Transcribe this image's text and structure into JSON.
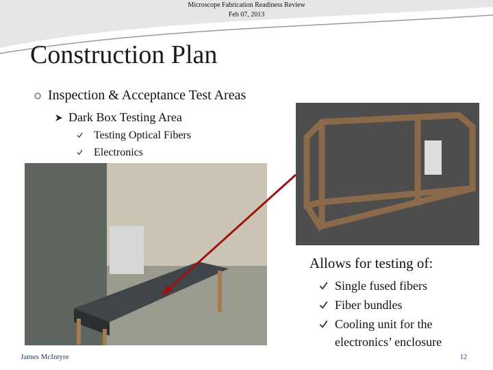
{
  "header": {
    "line1": "Microscope Fabrication Readiness Review",
    "line2": "Feb 07, 2013"
  },
  "title": "Construction Plan",
  "bullet": "Inspection & Acceptance Test Areas",
  "sub_bullet": "Dark Box Testing Area",
  "sub_items": [
    "Testing Optical Fibers",
    "Electronics"
  ],
  "caption": "Allows for testing of:",
  "items": [
    "Single fused fibers",
    "Fiber bundles",
    "Cooling unit for the electronics’ enclosure"
  ],
  "footer": {
    "author": "James McIntyre",
    "page": 12
  }
}
